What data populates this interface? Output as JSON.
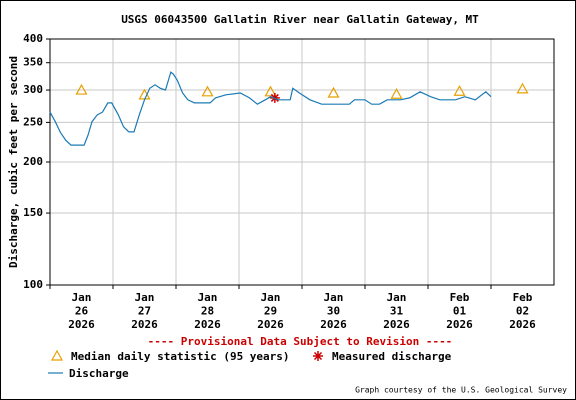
{
  "chart_data": {
    "type": "line",
    "title": "USGS 06043500 Gallatin River near Gallatin Gateway, MT",
    "ylabel": "Discharge, cubic feet per second",
    "annotation": "---- Provisional Data Subject to Revision ----",
    "credit": "Graph courtesy of the U.S. Geological Survey",
    "log_y": true,
    "grid": true,
    "ylim": [
      100,
      400
    ],
    "yticks": [
      100,
      150,
      200,
      250,
      300,
      350,
      400
    ],
    "xlim": [
      "2026-01-26T00:00",
      "2026-02-03T00:00"
    ],
    "xticks": [
      {
        "value": "2026-01-26",
        "label": [
          "Jan",
          "26",
          "2026"
        ]
      },
      {
        "value": "2026-01-27",
        "label": [
          "Jan",
          "27",
          "2026"
        ]
      },
      {
        "value": "2026-01-28",
        "label": [
          "Jan",
          "28",
          "2026"
        ]
      },
      {
        "value": "2026-01-29",
        "label": [
          "Jan",
          "29",
          "2026"
        ]
      },
      {
        "value": "2026-01-30",
        "label": [
          "Jan",
          "30",
          "2026"
        ]
      },
      {
        "value": "2026-01-31",
        "label": [
          "Jan",
          "31",
          "2026"
        ]
      },
      {
        "value": "2026-02-01",
        "label": [
          "Feb",
          "01",
          "2026"
        ]
      },
      {
        "value": "2026-02-02",
        "label": [
          "Feb",
          "02",
          "2026"
        ]
      }
    ],
    "series": [
      {
        "name": "Median daily statistic (95 years)",
        "marker": "triangle",
        "color": "#e8a000",
        "x": [
          "2026-01-26",
          "2026-01-27",
          "2026-01-28",
          "2026-01-29",
          "2026-01-30",
          "2026-01-31",
          "2026-02-01",
          "2026-02-02"
        ],
        "values": [
          300,
          292,
          297,
          297,
          295,
          293,
          298,
          302
        ]
      },
      {
        "name": "Measured discharge",
        "marker": "star",
        "color": "#cc0000",
        "x": [
          "2026-01-29T13:40"
        ],
        "values": [
          287
        ]
      },
      {
        "name": "Discharge",
        "marker": "line",
        "color": "#1a7ab5",
        "x": [
          "2026-01-26T00:00",
          "2026-01-26T02:00",
          "2026-01-26T04:00",
          "2026-01-26T06:00",
          "2026-01-26T08:00",
          "2026-01-26T13:00",
          "2026-01-26T14:30",
          "2026-01-26T16:00",
          "2026-01-26T18:00",
          "2026-01-26T20:00",
          "2026-01-26T22:00",
          "2026-01-26T23:30",
          "2026-01-27T02:00",
          "2026-01-27T04:00",
          "2026-01-27T06:00",
          "2026-01-27T08:00",
          "2026-01-27T10:00",
          "2026-01-27T12:00",
          "2026-01-27T14:00",
          "2026-01-27T16:00",
          "2026-01-27T18:00",
          "2026-01-27T20:00",
          "2026-01-27T22:00",
          "2026-01-27T23:00",
          "2026-01-28T00:30",
          "2026-01-28T02:30",
          "2026-01-28T04:30",
          "2026-01-28T07:00",
          "2026-01-28T13:00",
          "2026-01-28T15:00",
          "2026-01-28T19:00",
          "2026-01-29T00:30",
          "2026-01-29T04:00",
          "2026-01-29T07:00",
          "2026-01-29T10:00",
          "2026-01-29T12:00",
          "2026-01-29T15:00",
          "2026-01-29T19:30",
          "2026-01-29T20:30",
          "2026-01-29T23:00",
          "2026-01-30T03:00",
          "2026-01-30T07:30",
          "2026-01-30T18:00",
          "2026-01-30T20:00",
          "2026-01-31T00:00",
          "2026-01-31T02:30",
          "2026-01-31T05:30",
          "2026-01-31T08:30",
          "2026-01-31T13:30",
          "2026-01-31T17:00",
          "2026-01-31T21:00",
          "2026-02-01T01:00",
          "2026-02-01T04:30",
          "2026-02-01T10:30",
          "2026-02-01T14:00",
          "2026-02-01T18:00",
          "2026-02-01T22:00",
          "2026-02-02T00:00"
        ],
        "values": [
          265,
          251,
          236,
          226,
          220,
          220,
          233,
          251,
          261,
          265,
          279,
          279,
          261,
          244,
          237,
          237,
          261,
          284,
          303,
          309,
          303,
          300,
          332,
          328,
          317,
          295,
          284,
          279,
          279,
          287,
          292,
          295,
          287,
          277,
          284,
          289,
          284,
          284,
          303,
          295,
          284,
          277,
          277,
          284,
          284,
          277,
          277,
          284,
          284,
          287,
          297,
          289,
          284,
          284,
          289,
          284,
          297,
          289
        ]
      }
    ]
  }
}
